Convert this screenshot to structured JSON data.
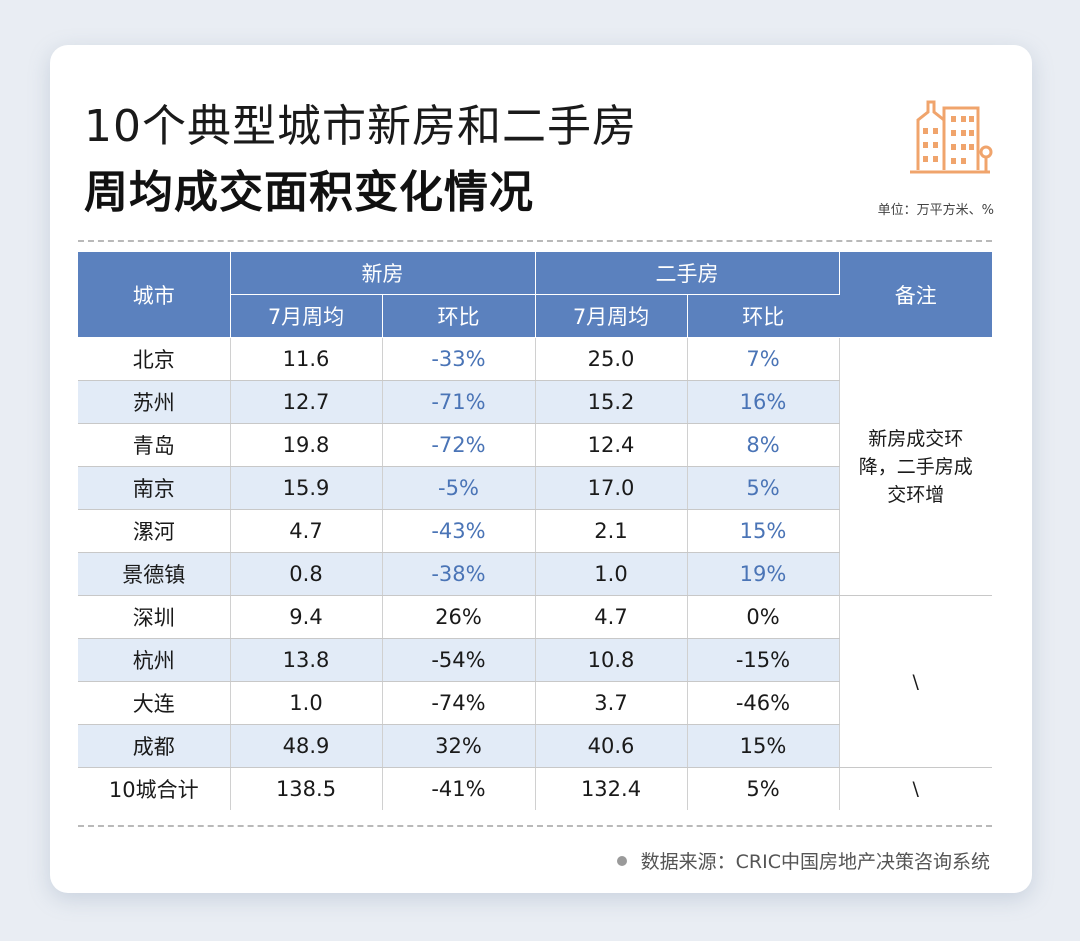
{
  "title": {
    "line1": "10个典型城市新房和二手房",
    "line2": "周均成交面积变化情况"
  },
  "unit": "单位：万平方米、%",
  "icon": "building-icon",
  "colors": {
    "header_bg": "#5b81be",
    "row_alt_bg": "#e2ebf7",
    "blue_text": "#4a74b6",
    "icon_orange": "#f0a46c"
  },
  "table": {
    "headers": {
      "city": "城市",
      "new_house": "新房",
      "second_house": "二手房",
      "note": "备注",
      "weekly_avg": "7月周均",
      "mom": "环比"
    },
    "rows": [
      {
        "city": "北京",
        "new_avg": "11.6",
        "new_mom": "-33%",
        "sec_avg": "25.0",
        "sec_mom": "7%"
      },
      {
        "city": "苏州",
        "new_avg": "12.7",
        "new_mom": "-71%",
        "sec_avg": "15.2",
        "sec_mom": "16%"
      },
      {
        "city": "青岛",
        "new_avg": "19.8",
        "new_mom": "-72%",
        "sec_avg": "12.4",
        "sec_mom": "8%"
      },
      {
        "city": "南京",
        "new_avg": "15.9",
        "new_mom": "-5%",
        "sec_avg": "17.0",
        "sec_mom": "5%"
      },
      {
        "city": "漯河",
        "new_avg": "4.7",
        "new_mom": "-43%",
        "sec_avg": "2.1",
        "sec_mom": "15%"
      },
      {
        "city": "景德镇",
        "new_avg": "0.8",
        "new_mom": "-38%",
        "sec_avg": "1.0",
        "sec_mom": "19%"
      },
      {
        "city": "深圳",
        "new_avg": "9.4",
        "new_mom": "26%",
        "sec_avg": "4.7",
        "sec_mom": "0%"
      },
      {
        "city": "杭州",
        "new_avg": "13.8",
        "new_mom": "-54%",
        "sec_avg": "10.8",
        "sec_mom": "-15%"
      },
      {
        "city": "大连",
        "new_avg": "1.0",
        "new_mom": "-74%",
        "sec_avg": "3.7",
        "sec_mom": "-46%"
      },
      {
        "city": "成都",
        "new_avg": "48.9",
        "new_mom": "32%",
        "sec_avg": "40.6",
        "sec_mom": "15%"
      },
      {
        "city": "10城合计",
        "new_avg": "138.5",
        "new_mom": "-41%",
        "sec_avg": "132.4",
        "sec_mom": "5%"
      }
    ],
    "notes": {
      "group1": "新房成交环降，二手房成交环增",
      "group2": "\\",
      "total": "\\"
    }
  },
  "footer": "数据来源：CRIC中国房地产决策咨询系统"
}
